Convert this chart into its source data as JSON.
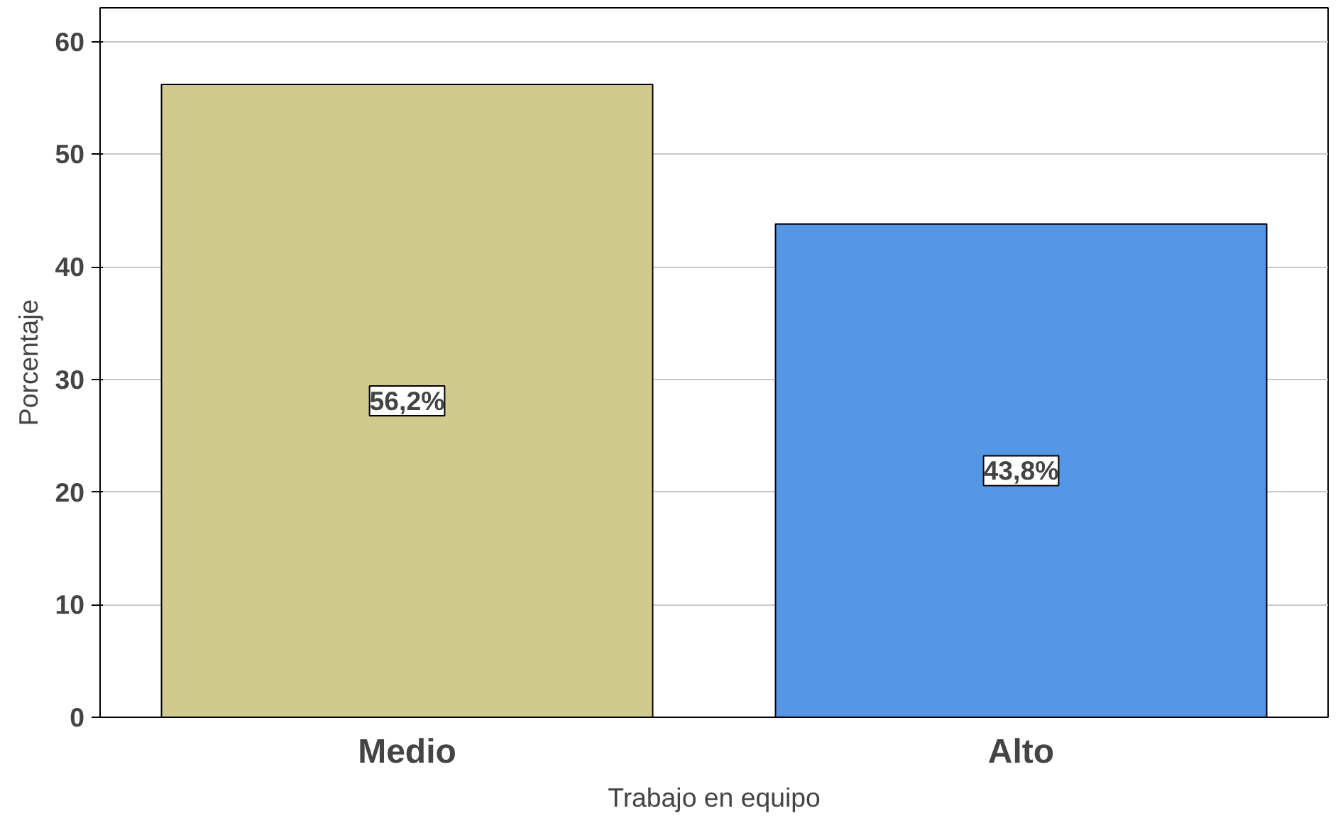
{
  "chart_data": {
    "type": "bar",
    "xlabel": "Trabajo en equipo",
    "ylabel": "Porcentaje",
    "categories": [
      "Medio",
      "Alto"
    ],
    "values": [
      56.2,
      43.8
    ],
    "colors": [
      "#d0ca8e",
      "#5596e5"
    ],
    "value_labels": [
      "56,2%",
      "43,8%"
    ],
    "ylim": [
      0,
      63
    ],
    "yticks": [
      0,
      10,
      20,
      30,
      40,
      50,
      60
    ],
    "grid": "y"
  }
}
